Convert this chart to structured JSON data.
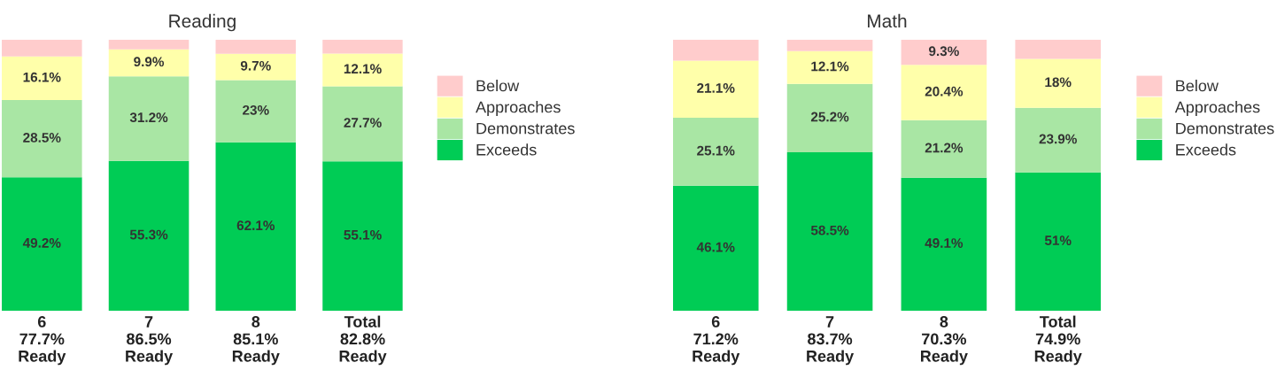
{
  "chart_data": [
    {
      "type": "bar",
      "title": "Reading",
      "stacked": true,
      "legend": "right",
      "tick_labels": "x",
      "grid": false,
      "categories": [
        "6\n77.7%\nReady",
        "7\n86.5%\nReady",
        "8\n85.1%\nReady",
        "Total\n82.8%\nReady"
      ],
      "series": [
        {
          "name": "Exceeds",
          "color": "#00cc55",
          "values": [
            49.2,
            55.3,
            62.1,
            55.1
          ],
          "value_labels": [
            "49.2%",
            "55.3%",
            "62.1%",
            "55.1%"
          ]
        },
        {
          "name": "Demonstrates",
          "color": "#a9e6a4",
          "values": [
            28.5,
            31.2,
            23,
            27.7
          ],
          "value_labels": [
            "28.5%",
            "31.2%",
            "23%",
            "27.7%"
          ]
        },
        {
          "name": "Approaches",
          "color": "#ffffaa",
          "values": [
            16.1,
            9.9,
            9.7,
            12.1
          ],
          "value_labels": [
            "16.1%",
            "9.9%",
            "9.7%",
            "12.1%"
          ]
        },
        {
          "name": "Below",
          "color": "#ffcccc",
          "values": [
            6.2,
            3.6,
            5.2,
            5.1
          ],
          "value_labels": [
            null,
            null,
            null,
            null
          ]
        }
      ]
    },
    {
      "type": "bar",
      "title": "Math",
      "stacked": true,
      "legend": "right",
      "tick_labels": "x",
      "grid": false,
      "categories": [
        "6\n71.2%\nReady",
        "7\n83.7%\nReady",
        "8\n70.3%\nReady",
        "Total\n74.9%\nReady"
      ],
      "series": [
        {
          "name": "Exceeds",
          "color": "#00cc55",
          "values": [
            46.1,
            58.5,
            49.1,
            51
          ],
          "value_labels": [
            "46.1%",
            "58.5%",
            "49.1%",
            "51%"
          ]
        },
        {
          "name": "Demonstrates",
          "color": "#a9e6a4",
          "values": [
            25.1,
            25.2,
            21.2,
            23.9
          ],
          "value_labels": [
            "25.1%",
            "25.2%",
            "21.2%",
            "23.9%"
          ]
        },
        {
          "name": "Approaches",
          "color": "#ffffaa",
          "values": [
            21.1,
            12.1,
            20.4,
            18
          ],
          "value_labels": [
            "21.1%",
            "12.1%",
            "20.4%",
            "18%"
          ]
        },
        {
          "name": "Below",
          "color": "#ffcccc",
          "values": [
            7.7,
            4.2,
            9.3,
            7.1
          ],
          "value_labels": [
            null,
            null,
            "9.3%",
            null
          ]
        }
      ]
    }
  ]
}
